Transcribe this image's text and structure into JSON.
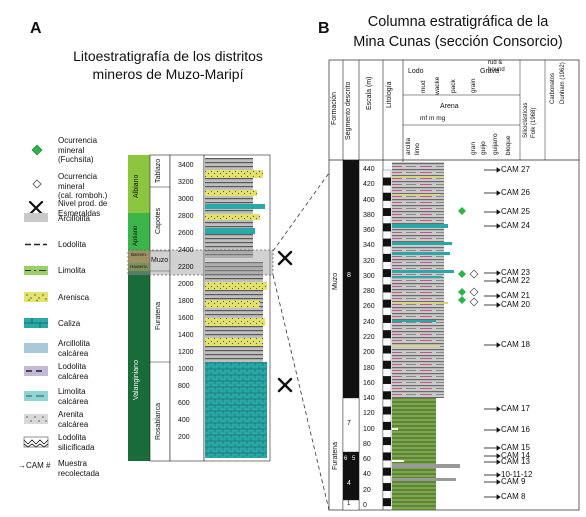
{
  "panel_a": {
    "letter": "A",
    "title_line1": "Litoestratigrafía de los distritos",
    "title_line2": "mineros de Muzo-Maripí",
    "legend": [
      {
        "key": "fuchsita",
        "text": "Ocurrencia mineral (Fuchsita)",
        "l1": "Ocurrencia",
        "l2": "mineral",
        "l3": "(Fuchsita)"
      },
      {
        "key": "calromb",
        "text": "Ocurrencia mineral (cal. romboh.)",
        "l1": "Ocurrencia",
        "l2": "mineral",
        "l3": "(cal. romboh.)"
      },
      {
        "key": "nivel",
        "l1": "Nivel prod. de",
        "l2": "Esmeraldas"
      },
      {
        "key": "arcillolita",
        "l1": "Arcillolita"
      },
      {
        "key": "lodolita",
        "l1": "Lodolita"
      },
      {
        "key": "limolita",
        "l1": "Limolita"
      },
      {
        "key": "arenisca",
        "l1": "Arenisca"
      },
      {
        "key": "caliza",
        "l1": "Caliza"
      },
      {
        "key": "arcilcalc",
        "l1": "Arcillolita",
        "l2": "calcárea"
      },
      {
        "key": "lodcalc",
        "l1": "Lodolita",
        "l2": "calcárea"
      },
      {
        "key": "limcalc",
        "l1": "Limolita",
        "l2": "calcárea"
      },
      {
        "key": "arencalc",
        "l1": "Arenita",
        "l2": "calcárea"
      },
      {
        "key": "lodsil",
        "l1": "Lodolita",
        "l2": "silicificada"
      },
      {
        "key": "muestra",
        "l1": "→CAM #",
        "l2": "Muestra",
        "l3": "recolectada"
      }
    ],
    "stages": [
      "Albiano",
      "Aptiano",
      "Barrem.",
      "Hauteriv.",
      "Valanginiano"
    ],
    "formations": [
      "Tablazo",
      "Capotes",
      "Muzo",
      "Furatena",
      "Rosablanca"
    ],
    "depth_ticks": [
      3400,
      3200,
      3000,
      2800,
      2600,
      2400,
      2200,
      2000,
      1800,
      1600,
      1400,
      1200,
      1000,
      800,
      600,
      400,
      200
    ]
  },
  "panel_b": {
    "letter": "B",
    "title_line1": "Columna estratigráfica de la",
    "title_line2": "Mina Cunas (sección Consorcio)",
    "headers": {
      "formacion": "Formación",
      "segmento": "Segmento descrito",
      "escala": "Escala (m)",
      "litologia": "Litología",
      "lodo": "Lodo",
      "arena": "Arena",
      "grava": "Grava",
      "arcilla": "arcilla",
      "limo": "limo",
      "mud": "mud",
      "wacke": "wacke",
      "pack": "pack",
      "grain": "grain",
      "rud": "rud &",
      "bound": "bound",
      "mfmgmg": "mf m mg",
      "gran": "gran",
      "guijo": "guijo",
      "guijarro": "guijarro",
      "bloque": "bloque",
      "siliciclasticas": "Siliciclásticas",
      "folk": "Folk (1968)",
      "carbonatos": "Carbonatos",
      "dunham": "Dunham (1962)"
    },
    "formation_labels": [
      "Muzo",
      "Furatena"
    ],
    "segment_labels": [
      "8",
      "7",
      "6",
      "5",
      "4",
      "1"
    ],
    "scale_ticks": [
      440,
      420,
      400,
      380,
      360,
      340,
      320,
      300,
      280,
      260,
      240,
      220,
      200,
      180,
      160,
      140,
      120,
      100,
      80,
      60,
      40,
      20,
      0
    ],
    "samples": [
      "CAM 27",
      "CAM 26",
      "CAM 25",
      "CAM 24",
      "CAM 23",
      "CAM 22",
      "CAM 21",
      "CAM 20",
      "CAM 18",
      "CAM 17",
      "CAM 16",
      "CAM 15",
      "CAM 14",
      "CAM 13",
      "10-11-12",
      "CAM 9",
      "CAM 8"
    ]
  },
  "colors": {
    "albiano": "#8cc63f",
    "aptiano": "#3bb54a",
    "barremiano": "#a08a3a",
    "valanginiano": "#1a6b3a",
    "caliza": "#2aa7a7",
    "arenisca": "#e3e26a",
    "arcillolita": "#c8c8c8",
    "fuchsita": "#2cb34a"
  }
}
